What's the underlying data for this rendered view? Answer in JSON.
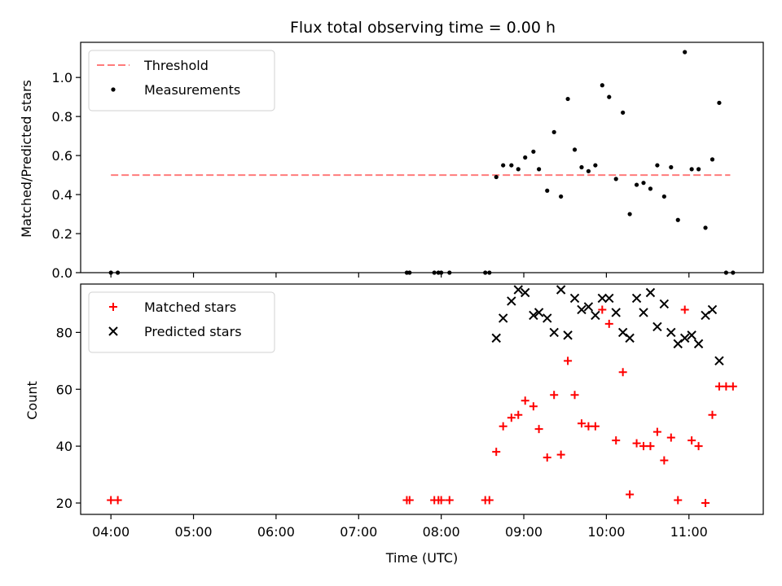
{
  "chart_data": [
    {
      "type": "scatter",
      "title": "Flux total observing time = 0.00 h",
      "xlabel": "",
      "ylabel": "Matched/Predicted stars",
      "xlim": [
        "03:38",
        "11:54"
      ],
      "ylim": [
        0,
        1.18
      ],
      "yticks": [
        "0.0",
        "0.2",
        "0.4",
        "0.6",
        "0.8",
        "1.0"
      ],
      "xtick_labels_visible": false,
      "grid": false,
      "legend_position": "top-left",
      "lines": [
        {
          "name": "Threshold",
          "color": "#ff7b7b",
          "style": "dashed",
          "x": [
            "04:00",
            "11:30"
          ],
          "y": [
            0.5,
            0.5
          ]
        }
      ],
      "series": [
        {
          "name": "Measurements",
          "color": "#000000",
          "marker": "dot",
          "points": [
            [
              "04:00",
              0
            ],
            [
              "04:05",
              0
            ],
            [
              "07:35",
              0
            ],
            [
              "07:37",
              0
            ],
            [
              "07:55",
              0
            ],
            [
              "07:58",
              0
            ],
            [
              "08:00",
              0
            ],
            [
              "08:06",
              0
            ],
            [
              "08:32",
              0
            ],
            [
              "08:35",
              0
            ],
            [
              "08:40",
              0.49
            ],
            [
              "08:45",
              0.55
            ],
            [
              "08:51",
              0.55
            ],
            [
              "08:56",
              0.53
            ],
            [
              "09:01",
              0.59
            ],
            [
              "09:07",
              0.62
            ],
            [
              "09:11",
              0.53
            ],
            [
              "09:17",
              0.42
            ],
            [
              "09:22",
              0.72
            ],
            [
              "09:27",
              0.39
            ],
            [
              "09:32",
              0.89
            ],
            [
              "09:37",
              0.63
            ],
            [
              "09:42",
              0.54
            ],
            [
              "09:47",
              0.52
            ],
            [
              "09:52",
              0.55
            ],
            [
              "09:57",
              0.96
            ],
            [
              "10:02",
              0.9
            ],
            [
              "10:07",
              0.48
            ],
            [
              "10:12",
              0.82
            ],
            [
              "10:17",
              0.3
            ],
            [
              "10:22",
              0.45
            ],
            [
              "10:27",
              0.46
            ],
            [
              "10:32",
              0.43
            ],
            [
              "10:37",
              0.55
            ],
            [
              "10:42",
              0.39
            ],
            [
              "10:47",
              0.54
            ],
            [
              "10:52",
              0.27
            ],
            [
              "10:57",
              1.13
            ],
            [
              "11:02",
              0.53
            ],
            [
              "11:07",
              0.53
            ],
            [
              "11:12",
              0.23
            ],
            [
              "11:17",
              0.58
            ],
            [
              "11:22",
              0.87
            ],
            [
              "11:27",
              0
            ],
            [
              "11:32",
              0
            ]
          ]
        }
      ]
    },
    {
      "type": "scatter",
      "title": "",
      "xlabel": "Time (UTC)",
      "ylabel": "Count",
      "xlim": [
        "03:38",
        "11:54"
      ],
      "ylim": [
        16,
        97
      ],
      "yticks": [
        "20",
        "40",
        "60",
        "80"
      ],
      "xticks": [
        "04:00",
        "05:00",
        "06:00",
        "07:00",
        "08:00",
        "09:00",
        "10:00",
        "11:00"
      ],
      "grid": false,
      "legend_position": "top-left",
      "series": [
        {
          "name": "Matched stars",
          "color": "#ff0000",
          "marker": "plus",
          "points": [
            [
              "04:00",
              21
            ],
            [
              "04:05",
              21
            ],
            [
              "07:35",
              21
            ],
            [
              "07:37",
              21
            ],
            [
              "07:55",
              21
            ],
            [
              "07:58",
              21
            ],
            [
              "08:00",
              21
            ],
            [
              "08:06",
              21
            ],
            [
              "08:32",
              21
            ],
            [
              "08:35",
              21
            ],
            [
              "08:40",
              38
            ],
            [
              "08:45",
              47
            ],
            [
              "08:51",
              50
            ],
            [
              "08:56",
              51
            ],
            [
              "09:01",
              56
            ],
            [
              "09:07",
              54
            ],
            [
              "09:11",
              46
            ],
            [
              "09:17",
              36
            ],
            [
              "09:22",
              58
            ],
            [
              "09:27",
              37
            ],
            [
              "09:32",
              70
            ],
            [
              "09:37",
              58
            ],
            [
              "09:42",
              48
            ],
            [
              "09:47",
              47
            ],
            [
              "09:52",
              47
            ],
            [
              "09:57",
              88
            ],
            [
              "10:02",
              83
            ],
            [
              "10:07",
              42
            ],
            [
              "10:12",
              66
            ],
            [
              "10:17",
              23
            ],
            [
              "10:22",
              41
            ],
            [
              "10:27",
              40
            ],
            [
              "10:32",
              40
            ],
            [
              "10:37",
              45
            ],
            [
              "10:42",
              35
            ],
            [
              "10:47",
              43
            ],
            [
              "10:52",
              21
            ],
            [
              "10:57",
              88
            ],
            [
              "11:02",
              42
            ],
            [
              "11:07",
              40
            ],
            [
              "11:12",
              20
            ],
            [
              "11:17",
              51
            ],
            [
              "11:22",
              61
            ],
            [
              "11:27",
              61
            ],
            [
              "11:32",
              61
            ]
          ]
        },
        {
          "name": "Predicted stars",
          "color": "#000000",
          "marker": "x",
          "points": [
            [
              "08:40",
              78
            ],
            [
              "08:45",
              85
            ],
            [
              "08:51",
              91
            ],
            [
              "08:56",
              95
            ],
            [
              "09:01",
              94
            ],
            [
              "09:07",
              86
            ],
            [
              "09:11",
              87
            ],
            [
              "09:17",
              85
            ],
            [
              "09:22",
              80
            ],
            [
              "09:27",
              95
            ],
            [
              "09:32",
              79
            ],
            [
              "09:37",
              92
            ],
            [
              "09:42",
              88
            ],
            [
              "09:47",
              89
            ],
            [
              "09:52",
              86
            ],
            [
              "09:57",
              92
            ],
            [
              "10:02",
              92
            ],
            [
              "10:07",
              87
            ],
            [
              "10:12",
              80
            ],
            [
              "10:17",
              78
            ],
            [
              "10:22",
              92
            ],
            [
              "10:27",
              87
            ],
            [
              "10:32",
              94
            ],
            [
              "10:37",
              82
            ],
            [
              "10:42",
              90
            ],
            [
              "10:47",
              80
            ],
            [
              "10:52",
              76
            ],
            [
              "10:57",
              78
            ],
            [
              "11:02",
              79
            ],
            [
              "11:07",
              76
            ],
            [
              "11:12",
              86
            ],
            [
              "11:17",
              88
            ],
            [
              "11:22",
              70
            ]
          ]
        }
      ]
    }
  ]
}
